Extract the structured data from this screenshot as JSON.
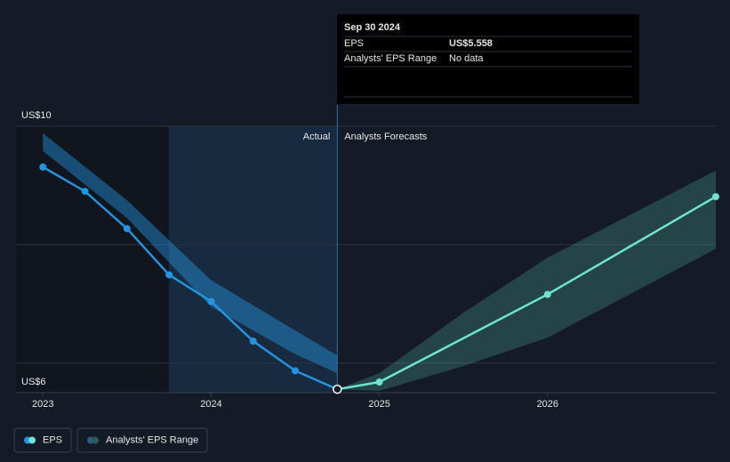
{
  "chart_data": {
    "type": "line",
    "xlim": [
      2022.84,
      2027.0
    ],
    "xticks": [
      2023,
      2024,
      2025,
      2026
    ],
    "ylim": [
      5.5,
      10
    ],
    "yticks": [
      {
        "value": 6,
        "label": "US$6"
      },
      {
        "value": 8,
        "label": null
      },
      {
        "value": 10,
        "label": "US$10"
      }
    ],
    "grid": true,
    "highlight_range": [
      2023.75,
      2024.75
    ],
    "divider_x": 2024.75,
    "divider_labels": {
      "left": "Actual",
      "right": "Analysts Forecasts"
    },
    "series": [
      {
        "name": "EPS",
        "color": "#2394df",
        "forecast_color": "#6fe3d1",
        "x": [
          2023.0,
          2023.25,
          2023.5,
          2023.75,
          2024.0,
          2024.25,
          2024.5,
          2024.75,
          2025.0,
          2026.0,
          2027.0
        ],
        "values": [
          9.31,
          8.9,
          8.27,
          7.49,
          7.04,
          6.37,
          5.87,
          5.558,
          5.68,
          7.16,
          8.81
        ],
        "band_x": [
          2023.0,
          2023.5,
          2024.0,
          2024.5,
          2024.75
        ],
        "band_high": [
          9.88,
          8.75,
          7.4,
          6.55,
          6.13
        ],
        "band_low": [
          9.58,
          8.45,
          6.95,
          6.15,
          5.83
        ]
      }
    ],
    "ranges": [
      {
        "name": "Analysts' EPS Range",
        "color": "#5fd8c5",
        "x": [
          2024.75,
          2025.0,
          2025.5,
          2026.0,
          2027.0
        ],
        "high": [
          5.558,
          5.83,
          6.85,
          7.78,
          9.25
        ],
        "low": [
          5.558,
          5.53,
          5.95,
          6.43,
          7.93
        ]
      }
    ],
    "tooltip": {
      "date": "Sep 30 2024",
      "rows": [
        {
          "label": "EPS",
          "value": "US$5.558"
        },
        {
          "label": "Analysts' EPS Range",
          "value": "No data"
        }
      ]
    }
  }
}
